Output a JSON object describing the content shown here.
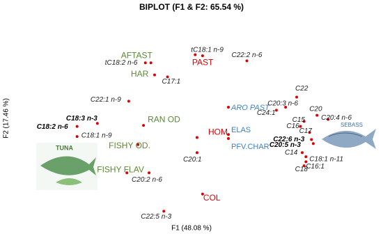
{
  "chart_data": {
    "type": "scatter",
    "title": "BIPLOT  (F1 & F2: 65.54 %)",
    "x_label": "F1 (48.08 %)",
    "y_label": "F2 (17.46 %)",
    "xlim": [
      -1,
      1
    ],
    "ylim": [
      -1,
      1
    ],
    "point_color": "#e00000",
    "labels": [
      "AFTAST",
      "tC18:2 n-6",
      "HAR",
      "RAN OD",
      "FISHY OD.",
      "FISHY FLAV",
      "PAST",
      "tC18:1 n-9",
      "HOM",
      "COL",
      "ARO PAST",
      "ELAS",
      "PFV.CHAR",
      "C22:2 n-6",
      "C17:1",
      "C22:1 n-9",
      "C18:3 n-3",
      "C18:2 n-6",
      "C18:1 n-9",
      "C20:1",
      "C20:2 n-6",
      "C22:5 n-3",
      "C22",
      "C20:3 n-6",
      "C24:1",
      "C20",
      "C20:4 n-6",
      "C15",
      "C16",
      "C17",
      "C22:6 n-3",
      "C20:5 n-3",
      "C14",
      "C18:1 n-11",
      "C16:1",
      "C18"
    ],
    "x": [
      -0.22,
      -0.25,
      -0.2,
      -0.26,
      -0.29,
      -0.35,
      0.06,
      0.02,
      0.03,
      0.06,
      0.2,
      0.2,
      0.2,
      0.3,
      -0.13,
      -0.34,
      -0.51,
      -0.62,
      -0.62,
      0.03,
      -0.23,
      -0.15,
      0.57,
      0.51,
      0.46,
      0.68,
      0.74,
      0.61,
      0.59,
      0.64,
      0.65,
      0.66,
      0.6,
      0.62,
      0.62,
      0.61
    ],
    "y": [
      0.55,
      0.55,
      0.43,
      -0.07,
      -0.26,
      -0.54,
      0.62,
      0.63,
      -0.19,
      -0.75,
      0.11,
      -0.16,
      -0.2,
      0.57,
      0.41,
      0.17,
      -0.05,
      -0.08,
      -0.18,
      -0.34,
      -0.54,
      -0.92,
      0.21,
      0.11,
      0.08,
      0.03,
      -0.01,
      -0.03,
      -0.08,
      -0.14,
      -0.21,
      -0.25,
      -0.34,
      -0.38,
      -0.43,
      -0.47
    ],
    "label_colors": [
      "#5a8a32",
      "#222",
      "#5a8a32",
      "#5a8a32",
      "#5a8a32",
      "#5a8a32",
      "#e00000",
      "#222",
      "#e00000",
      "#e00000",
      "#3d7fc1",
      "#3d7fc1",
      "#3d7fc1",
      "#222",
      "#222",
      "#222",
      "#000",
      "#000",
      "#222",
      "#222",
      "#222",
      "#222",
      "#222",
      "#222",
      "#222",
      "#222",
      "#222",
      "#222",
      "#222",
      "#222",
      "#000",
      "#000",
      "#222",
      "#222",
      "#222",
      "#222"
    ],
    "bold_labels": [
      "C18:3 n-3",
      "C18:2 n-6",
      "C22:6 n-3",
      "C20:5 n-3"
    ],
    "images": [
      "TUNA",
      "SEBASS"
    ]
  }
}
